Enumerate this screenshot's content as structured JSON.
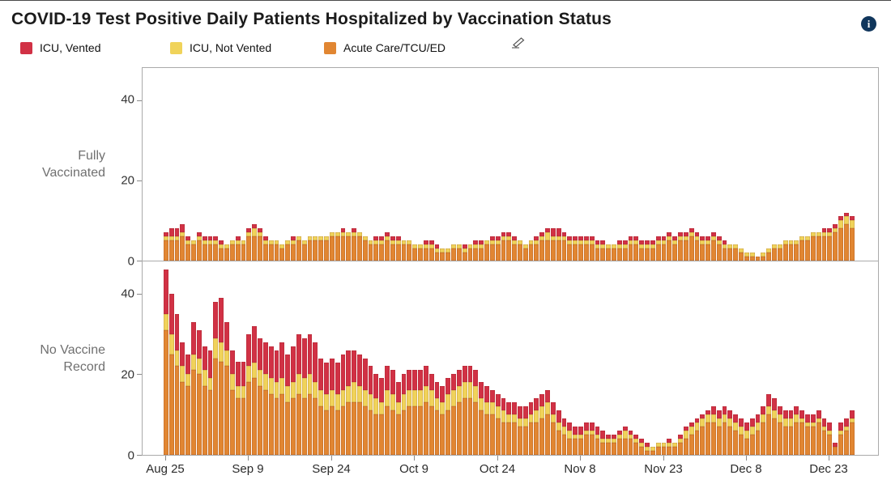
{
  "header": {
    "title": "COVID-19 Test Positive Daily Patients Hospitalized by Vaccination Status",
    "info_icon_glyph": "i"
  },
  "icons": {
    "info": "info-icon",
    "annotate": "pencil-icon"
  },
  "chart_data": {
    "type": "bar",
    "stacked": true,
    "grid": false,
    "legend_position": "top",
    "legend": [
      {
        "label": "ICU, Vented",
        "color": "#d13145"
      },
      {
        "label": "ICU, Not Vented",
        "color": "#f0d35a"
      },
      {
        "label": "Acute Care/TCU/ED",
        "color": "#e18632"
      }
    ],
    "x_start": "Aug 25",
    "x_ticks": [
      {
        "index": 0,
        "label": "Aug 25"
      },
      {
        "index": 15,
        "label": "Sep 9"
      },
      {
        "index": 30,
        "label": "Sep 24"
      },
      {
        "index": 45,
        "label": "Oct 9"
      },
      {
        "index": 60,
        "label": "Oct 24"
      },
      {
        "index": 75,
        "label": "Nov 8"
      },
      {
        "index": 90,
        "label": "Nov 23"
      },
      {
        "index": 105,
        "label": "Dec 8"
      },
      {
        "index": 120,
        "label": "Dec 23"
      }
    ],
    "yticks": [
      0,
      20,
      40
    ],
    "ylim": [
      0,
      48
    ],
    "panels": [
      {
        "label": "Fully Vaccinated",
        "series": [
          {
            "name": "ICU, Vented",
            "color": "#d13145",
            "values": [
              1,
              2,
              2,
              2,
              1,
              0,
              1,
              1,
              1,
              1,
              1,
              0,
              0,
              1,
              0,
              1,
              1,
              1,
              1,
              0,
              0,
              0,
              0,
              1,
              0,
              0,
              0,
              0,
              0,
              0,
              0,
              0,
              1,
              0,
              1,
              0,
              0,
              0,
              1,
              1,
              1,
              1,
              1,
              0,
              0,
              0,
              0,
              1,
              1,
              1,
              0,
              0,
              0,
              0,
              1,
              0,
              1,
              1,
              0,
              1,
              1,
              1,
              1,
              1,
              0,
              0,
              0,
              1,
              1,
              1,
              2,
              2,
              1,
              1,
              1,
              1,
              1,
              1,
              1,
              1,
              0,
              0,
              1,
              1,
              1,
              1,
              1,
              1,
              1,
              1,
              1,
              1,
              1,
              1,
              1,
              1,
              1,
              1,
              1,
              1,
              1,
              1,
              0,
              0,
              0,
              0,
              0,
              0,
              0,
              0,
              0,
              0,
              0,
              0,
              0,
              0,
              0,
              0,
              0,
              1,
              1,
              1,
              1,
              1,
              1
            ]
          },
          {
            "name": "ICU, Not Vented",
            "color": "#f0d35a",
            "values": [
              1,
              1,
              1,
              1,
              1,
              1,
              1,
              1,
              1,
              1,
              1,
              1,
              1,
              1,
              1,
              1,
              2,
              1,
              1,
              1,
              1,
              1,
              1,
              1,
              1,
              1,
              1,
              1,
              1,
              1,
              1,
              1,
              1,
              1,
              1,
              1,
              1,
              1,
              1,
              1,
              1,
              1,
              1,
              1,
              1,
              1,
              1,
              1,
              1,
              1,
              1,
              1,
              1,
              1,
              1,
              1,
              1,
              1,
              1,
              1,
              1,
              1,
              1,
              1,
              1,
              1,
              1,
              1,
              1,
              2,
              1,
              1,
              1,
              1,
              1,
              1,
              1,
              1,
              1,
              1,
              1,
              1,
              1,
              1,
              1,
              1,
              1,
              1,
              1,
              1,
              1,
              1,
              1,
              1,
              1,
              1,
              1,
              1,
              1,
              1,
              1,
              1,
              1,
              1,
              1,
              1,
              1,
              0,
              1,
              1,
              1,
              1,
              1,
              1,
              1,
              1,
              1,
              1,
              1,
              1,
              1,
              1,
              2,
              2,
              2
            ]
          },
          {
            "name": "Acute Care/TCU/ED",
            "color": "#e18632",
            "values": [
              5,
              5,
              5,
              6,
              4,
              4,
              5,
              4,
              4,
              4,
              3,
              3,
              4,
              4,
              4,
              6,
              6,
              6,
              4,
              4,
              4,
              3,
              4,
              4,
              5,
              4,
              5,
              5,
              5,
              5,
              6,
              6,
              6,
              6,
              6,
              6,
              5,
              4,
              4,
              4,
              5,
              4,
              4,
              4,
              4,
              3,
              3,
              3,
              3,
              2,
              2,
              2,
              3,
              3,
              2,
              3,
              3,
              3,
              4,
              4,
              4,
              5,
              5,
              4,
              4,
              3,
              4,
              4,
              5,
              5,
              5,
              5,
              5,
              4,
              4,
              4,
              4,
              4,
              3,
              3,
              3,
              3,
              3,
              3,
              4,
              4,
              3,
              3,
              3,
              4,
              4,
              5,
              4,
              5,
              5,
              6,
              5,
              4,
              4,
              5,
              4,
              3,
              3,
              3,
              2,
              1,
              1,
              1,
              1,
              2,
              3,
              3,
              4,
              4,
              4,
              5,
              5,
              6,
              6,
              6,
              6,
              7,
              8,
              9,
              8
            ]
          }
        ]
      },
      {
        "label": "No Vaccine Record",
        "series": [
          {
            "name": "ICU, Vented",
            "color": "#d13145",
            "values": [
              11,
              10,
              9,
              6,
              5,
              8,
              7,
              6,
              7,
              9,
              11,
              7,
              6,
              6,
              6,
              8,
              9,
              8,
              8,
              8,
              8,
              9,
              8,
              9,
              10,
              10,
              10,
              10,
              8,
              8,
              8,
              8,
              9,
              9,
              8,
              8,
              8,
              7,
              6,
              6,
              6,
              6,
              5,
              5,
              5,
              5,
              5,
              5,
              4,
              4,
              4,
              4,
              4,
              4,
              4,
              4,
              4,
              4,
              4,
              3,
              3,
              3,
              3,
              3,
              3,
              3,
              3,
              3,
              3,
              3,
              3,
              3,
              2,
              2,
              2,
              2,
              2,
              2,
              2,
              2,
              1,
              1,
              1,
              1,
              1,
              1,
              1,
              1,
              0,
              0,
              0,
              1,
              0,
              1,
              1,
              1,
              1,
              1,
              1,
              2,
              2,
              2,
              2,
              2,
              2,
              2,
              2,
              2,
              2,
              3,
              3,
              2,
              2,
              2,
              2,
              2,
              2,
              2,
              2,
              2,
              2,
              1,
              2,
              2,
              2
            ]
          },
          {
            "name": "ICU, Not Vented",
            "color": "#f0d35a",
            "values": [
              4,
              5,
              4,
              4,
              3,
              4,
              4,
              4,
              3,
              5,
              5,
              4,
              4,
              3,
              3,
              4,
              4,
              4,
              4,
              4,
              4,
              4,
              4,
              4,
              5,
              5,
              5,
              4,
              4,
              4,
              4,
              4,
              4,
              4,
              5,
              4,
              4,
              4,
              4,
              3,
              4,
              4,
              3,
              4,
              4,
              4,
              4,
              4,
              4,
              3,
              3,
              4,
              4,
              4,
              4,
              4,
              4,
              3,
              3,
              3,
              3,
              3,
              2,
              2,
              2,
              2,
              2,
              3,
              3,
              3,
              2,
              2,
              2,
              2,
              1,
              1,
              1,
              1,
              1,
              1,
              1,
              1,
              1,
              2,
              1,
              1,
              1,
              1,
              1,
              1,
              1,
              1,
              1,
              1,
              2,
              2,
              2,
              2,
              2,
              2,
              2,
              2,
              2,
              2,
              2,
              2,
              2,
              2,
              2,
              2,
              2,
              2,
              2,
              2,
              2,
              1,
              1,
              1,
              1,
              1,
              1,
              0,
              1,
              1,
              1
            ]
          },
          {
            "name": "Acute Care/TCU/ED",
            "color": "#e18632",
            "values": [
              31,
              25,
              22,
              18,
              17,
              21,
              20,
              17,
              16,
              24,
              23,
              22,
              16,
              14,
              14,
              18,
              19,
              17,
              16,
              15,
              14,
              15,
              13,
              14,
              15,
              14,
              15,
              14,
              12,
              11,
              12,
              11,
              12,
              13,
              13,
              13,
              12,
              11,
              10,
              10,
              12,
              11,
              10,
              11,
              12,
              12,
              12,
              13,
              12,
              11,
              10,
              11,
              12,
              13,
              14,
              14,
              13,
              11,
              10,
              10,
              9,
              8,
              8,
              8,
              7,
              7,
              8,
              8,
              9,
              10,
              8,
              6,
              5,
              4,
              4,
              4,
              5,
              5,
              4,
              3,
              3,
              3,
              4,
              4,
              4,
              3,
              2,
              1,
              1,
              2,
              2,
              2,
              2,
              3,
              4,
              5,
              6,
              7,
              8,
              8,
              7,
              8,
              7,
              6,
              5,
              4,
              5,
              6,
              8,
              10,
              9,
              8,
              7,
              7,
              8,
              8,
              7,
              7,
              8,
              6,
              5,
              2,
              5,
              6,
              8
            ]
          }
        ]
      }
    ]
  }
}
